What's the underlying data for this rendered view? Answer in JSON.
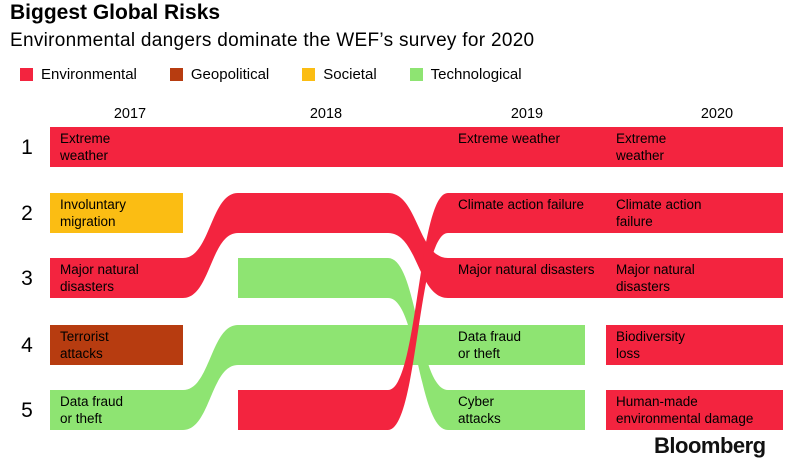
{
  "title": "Biggest Global Risks",
  "subtitle": "Environmental dangers dominate the WEF’s survey for 2020",
  "brand": "Bloomberg",
  "legend": [
    {
      "name": "Environmental",
      "color": "#f3243f"
    },
    {
      "name": "Geopolitical",
      "color": "#b73c10"
    },
    {
      "name": "Societal",
      "color": "#fbbd13"
    },
    {
      "name": "Technological",
      "color": "#8ee472"
    }
  ],
  "chart_data": {
    "type": "bump",
    "years": [
      "2017",
      "2018",
      "2019",
      "2020"
    ],
    "ranks": [
      "1",
      "2",
      "3",
      "4",
      "5"
    ],
    "rankings": {
      "2017": [
        {
          "rank": 1,
          "risk": "Extreme weather",
          "lines": [
            "Extreme",
            "weather"
          ],
          "category": "Environmental"
        },
        {
          "rank": 2,
          "risk": "Involuntary migration",
          "lines": [
            "Involuntary",
            "migration"
          ],
          "category": "Societal"
        },
        {
          "rank": 3,
          "risk": "Major natural disasters",
          "lines": [
            "Major natural",
            "disasters"
          ],
          "category": "Environmental"
        },
        {
          "rank": 4,
          "risk": "Terrorist attacks",
          "lines": [
            "Terrorist",
            "attacks"
          ],
          "category": "Geopolitical"
        },
        {
          "rank": 5,
          "risk": "Data fraud or theft",
          "lines": [
            "Data fraud",
            "or theft"
          ],
          "category": "Technological"
        }
      ],
      "2018": [
        {
          "rank": 1,
          "risk": "Extreme weather",
          "category": "Environmental"
        },
        {
          "rank": 2,
          "risk": "Major natural disasters",
          "category": "Environmental"
        },
        {
          "rank": 3,
          "risk": "Cyber attacks",
          "category": "Technological"
        },
        {
          "rank": 4,
          "risk": "Data fraud or theft",
          "category": "Technological"
        },
        {
          "rank": 5,
          "risk": "Climate action failure",
          "category": "Environmental"
        }
      ],
      "2019": [
        {
          "rank": 1,
          "risk": "Extreme weather",
          "category": "Environmental"
        },
        {
          "rank": 2,
          "risk": "Climate action failure",
          "category": "Environmental"
        },
        {
          "rank": 3,
          "risk": "Major natural disasters",
          "category": "Environmental"
        },
        {
          "rank": 4,
          "risk": "Data fraud or theft",
          "lines": [
            "Data fraud",
            "or theft"
          ],
          "category": "Technological"
        },
        {
          "rank": 5,
          "risk": "Cyber attacks",
          "lines": [
            "Cyber",
            "attacks"
          ],
          "category": "Technological"
        }
      ],
      "2020": [
        {
          "rank": 1,
          "risk": "Extreme weather",
          "lines": [
            "Extreme",
            "weather"
          ],
          "category": "Environmental"
        },
        {
          "rank": 2,
          "risk": "Climate action failure",
          "lines": [
            "Climate action",
            "failure"
          ],
          "category": "Environmental"
        },
        {
          "rank": 3,
          "risk": "Major natural disasters",
          "lines": [
            "Major natural",
            "disasters"
          ],
          "category": "Environmental"
        },
        {
          "rank": 4,
          "risk": "Biodiversity loss",
          "lines": [
            "Biodiversity",
            "loss"
          ],
          "category": "Environmental"
        },
        {
          "rank": 5,
          "risk": "Human-made environmental damage",
          "lines": [
            "Human-made",
            "environmental damage"
          ],
          "category": "Environmental"
        }
      ]
    },
    "ribbons": [
      {
        "risk": "Extreme weather",
        "category": "Environmental",
        "path": [
          1,
          1,
          1,
          1
        ]
      },
      {
        "risk": "Major natural disasters",
        "category": "Environmental",
        "path": [
          3,
          2,
          3,
          3
        ]
      },
      {
        "risk": "Climate action failure",
        "category": "Environmental",
        "path": [
          null,
          5,
          2,
          2
        ]
      },
      {
        "risk": "Data fraud or theft",
        "category": "Technological",
        "path": [
          5,
          4,
          4,
          null
        ]
      },
      {
        "risk": "Cyber attacks",
        "category": "Technological",
        "path": [
          null,
          3,
          5,
          null
        ]
      }
    ]
  }
}
